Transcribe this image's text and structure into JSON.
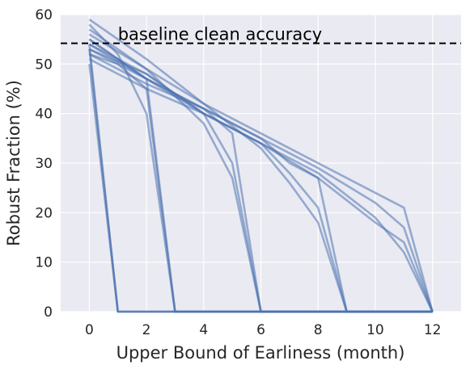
{
  "chart_data": {
    "type": "line",
    "xlabel": "Upper Bound of Earliness (month)",
    "ylabel": "Robust Fraction (%)",
    "xlim": [
      -1,
      13
    ],
    "ylim": [
      0,
      60
    ],
    "xticks": [
      0,
      2,
      4,
      6,
      8,
      10,
      12
    ],
    "yticks": [
      0,
      10,
      20,
      30,
      40,
      50,
      60
    ],
    "grid": true,
    "background_color": "#EAEAF2",
    "grid_color": "#FFFFFF",
    "line_color": "#4C72B0",
    "baseline": {
      "value": 54.2,
      "label": "baseline clean accuracy",
      "style": "dashed",
      "color": "#000000"
    },
    "series": [
      {
        "x": [
          0,
          1,
          12
        ],
        "y": [
          53,
          0,
          0
        ]
      },
      {
        "x": [
          0,
          1,
          12
        ],
        "y": [
          50,
          0,
          0
        ]
      },
      {
        "x": [
          0,
          1,
          12
        ],
        "y": [
          54,
          0,
          0
        ]
      },
      {
        "x": [
          0,
          1,
          2,
          3,
          12
        ],
        "y": [
          58,
          52,
          40,
          0,
          0
        ]
      },
      {
        "x": [
          0,
          1,
          2,
          3,
          12
        ],
        "y": [
          52,
          50,
          45,
          0,
          0
        ]
      },
      {
        "x": [
          0,
          1,
          2,
          3,
          12
        ],
        "y": [
          55,
          51,
          47,
          0,
          0
        ]
      },
      {
        "x": [
          0,
          2,
          4,
          5,
          6,
          12
        ],
        "y": [
          57,
          49,
          38,
          27,
          0,
          0
        ]
      },
      {
        "x": [
          0,
          2,
          4,
          5,
          6,
          12
        ],
        "y": [
          53,
          48,
          40,
          30,
          0,
          0
        ]
      },
      {
        "x": [
          0,
          2,
          4,
          5,
          6,
          12
        ],
        "y": [
          54,
          47,
          41,
          36,
          0,
          0
        ]
      },
      {
        "x": [
          0,
          2,
          4,
          6,
          7,
          8,
          9,
          12
        ],
        "y": [
          59,
          51,
          42,
          33,
          26,
          18,
          0,
          0
        ]
      },
      {
        "x": [
          0,
          2,
          4,
          6,
          7,
          8,
          9,
          12
        ],
        "y": [
          54,
          48,
          40,
          34,
          28,
          21,
          0,
          0
        ]
      },
      {
        "x": [
          0,
          2,
          4,
          6,
          7,
          8,
          9,
          12
        ],
        "y": [
          53,
          47,
          41,
          35,
          30,
          27,
          0,
          0
        ]
      },
      {
        "x": [
          0,
          2,
          4,
          6,
          8,
          10,
          11,
          12
        ],
        "y": [
          56,
          49,
          42,
          36,
          30,
          24,
          21,
          0
        ]
      },
      {
        "x": [
          0,
          2,
          4,
          6,
          8,
          10,
          11,
          12
        ],
        "y": [
          55,
          47,
          40,
          34,
          28,
          19,
          12,
          0
        ]
      },
      {
        "x": [
          0,
          2,
          4,
          6,
          8,
          10,
          11,
          12
        ],
        "y": [
          52,
          46,
          41,
          35,
          29,
          22,
          17,
          0
        ]
      },
      {
        "x": [
          0,
          2,
          4,
          6,
          8,
          10,
          11,
          12
        ],
        "y": [
          51,
          45,
          40,
          34,
          27,
          18,
          14,
          0
        ]
      }
    ]
  }
}
